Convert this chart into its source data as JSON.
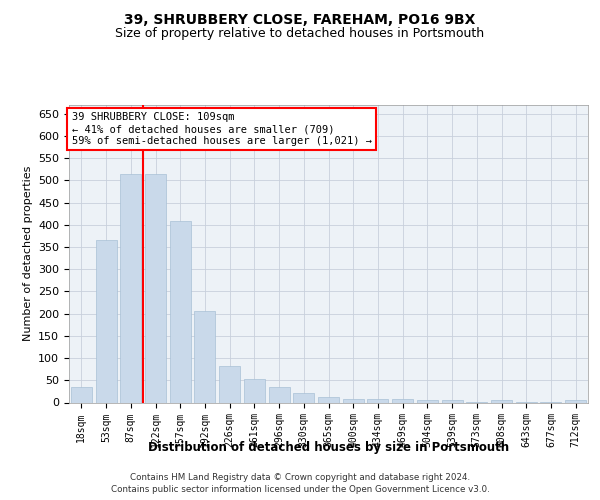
{
  "title": "39, SHRUBBERY CLOSE, FAREHAM, PO16 9BX",
  "subtitle": "Size of property relative to detached houses in Portsmouth",
  "xlabel": "Distribution of detached houses by size in Portsmouth",
  "ylabel": "Number of detached properties",
  "bar_color": "#c9d9ea",
  "bar_edgecolor": "#a8c0d6",
  "grid_color": "#c8d0dc",
  "background_color": "#edf2f7",
  "vline_color": "red",
  "vline_position": 2.5,
  "annotation_text": "39 SHRUBBERY CLOSE: 109sqm\n← 41% of detached houses are smaller (709)\n59% of semi-detached houses are larger (1,021) →",
  "categories": [
    "18sqm",
    "53sqm",
    "87sqm",
    "122sqm",
    "157sqm",
    "192sqm",
    "226sqm",
    "261sqm",
    "296sqm",
    "330sqm",
    "365sqm",
    "400sqm",
    "434sqm",
    "469sqm",
    "504sqm",
    "539sqm",
    "573sqm",
    "608sqm",
    "643sqm",
    "677sqm",
    "712sqm"
  ],
  "values": [
    35,
    365,
    515,
    515,
    408,
    205,
    82,
    52,
    35,
    22,
    12,
    9,
    9,
    9,
    5,
    5,
    2,
    5,
    2,
    2,
    5
  ],
  "ylim": [
    0,
    670
  ],
  "yticks": [
    0,
    50,
    100,
    150,
    200,
    250,
    300,
    350,
    400,
    450,
    500,
    550,
    600,
    650
  ],
  "footer": "Contains HM Land Registry data © Crown copyright and database right 2024.\nContains public sector information licensed under the Open Government Licence v3.0."
}
